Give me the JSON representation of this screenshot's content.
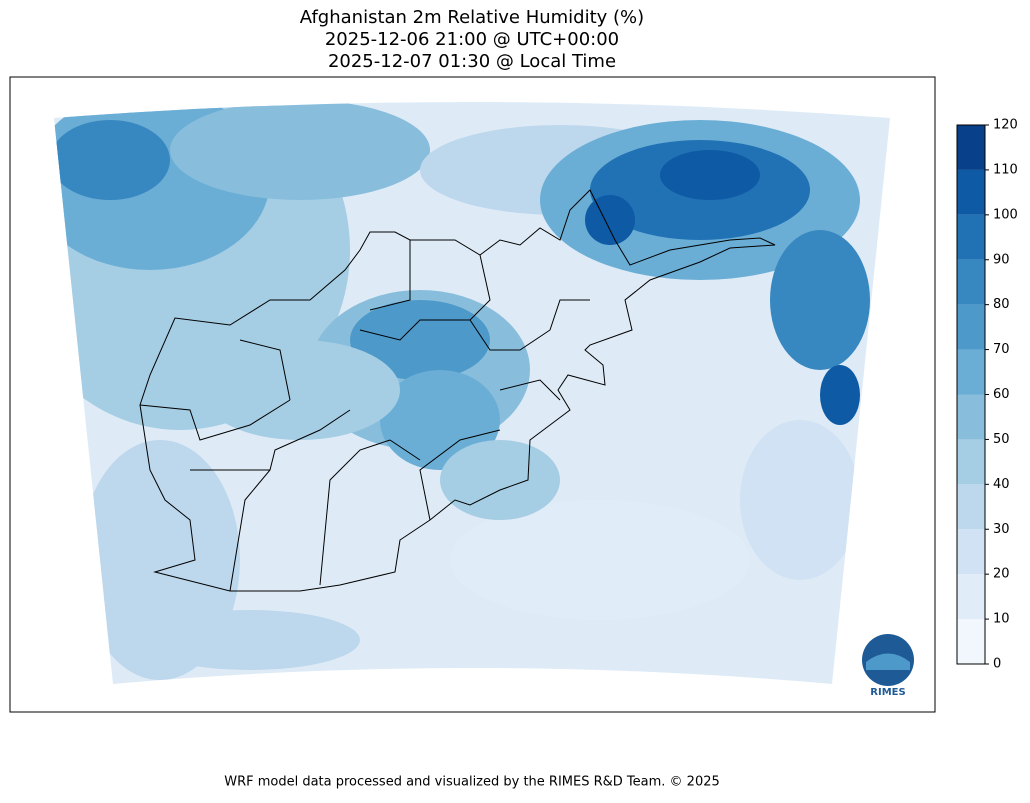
{
  "header": {
    "title": "Afghanistan 2m Relative Humidity (%)",
    "utc_time": "2025-12-06 21:00 @ UTC+00:00",
    "local_time": "2025-12-07 01:30 @ Local Time"
  },
  "map": {
    "colorbar": {
      "lim": [
        0,
        120
      ],
      "ticks": [
        0,
        10,
        20,
        30,
        40,
        50,
        60,
        70,
        80,
        90,
        100,
        110,
        120
      ],
      "colors": [
        "#f2f7fd",
        "#e0ecf8",
        "#d0e2f3",
        "#bdd7ec",
        "#a5cde3",
        "#88bedc",
        "#6aaed6",
        "#4d99ca",
        "#3787c0",
        "#2171b5",
        "#0e5aa5",
        "#08408a"
      ]
    },
    "logo": "RIMES"
  },
  "footer": "WRF model data processed and visualized by the RIMES R&D Team. © 2025"
}
